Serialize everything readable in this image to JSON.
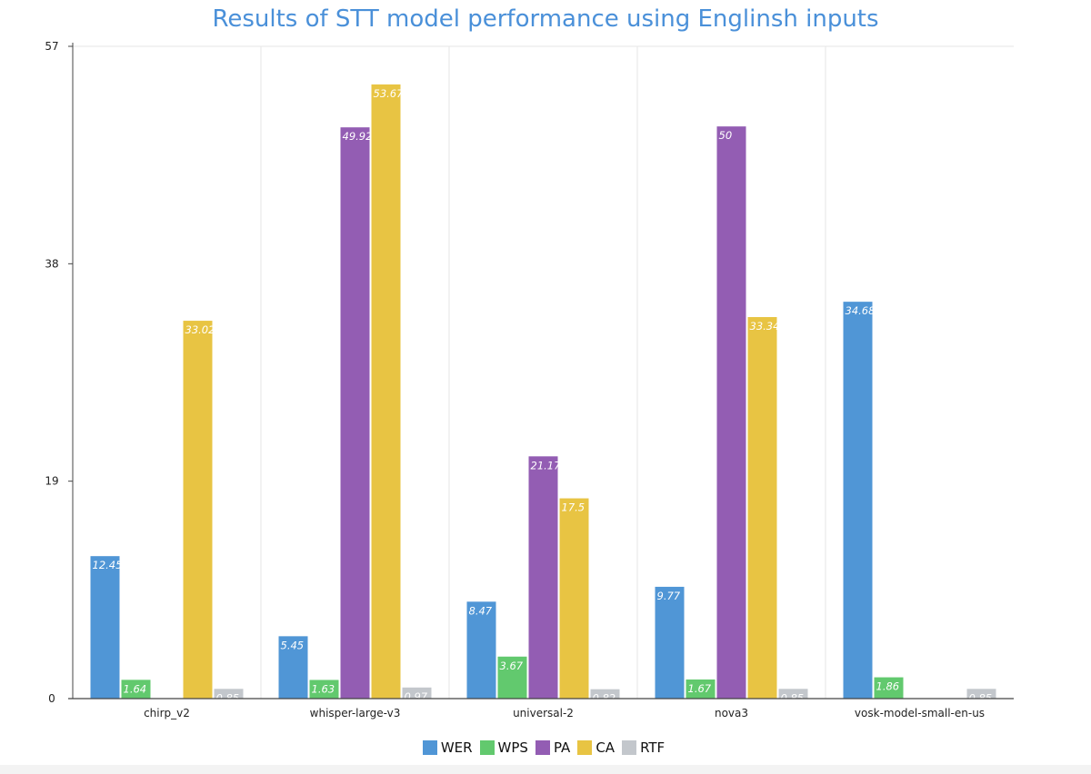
{
  "chart_data": {
    "type": "bar",
    "title": "Results of STT model performance using Englinsh inputs",
    "categories": [
      "chirp_v2",
      "whisper-large-v3",
      "universal-2",
      "nova3",
      "vosk-model-small-en-us"
    ],
    "series": [
      {
        "name": "WER",
        "color": "#5096d6",
        "values": [
          12.45,
          5.45,
          8.47,
          9.77,
          34.68
        ],
        "labels": [
          "12.45",
          "5.45",
          "8.47",
          "9.77",
          "34.68"
        ]
      },
      {
        "name": "WPS",
        "color": "#62c96e",
        "values": [
          1.64,
          1.63,
          3.67,
          1.67,
          1.86
        ],
        "labels": [
          "1.64",
          "1.63",
          "3.67",
          "1.67",
          "1.86"
        ]
      },
      {
        "name": "PA",
        "color": "#935db3",
        "values": [
          0,
          49.92,
          21.17,
          50,
          0
        ],
        "labels": [
          "",
          "49.92",
          "21.17",
          "50",
          ""
        ]
      },
      {
        "name": "CA",
        "color": "#e8c443",
        "values": [
          33.02,
          53.67,
          17.5,
          33.34,
          0
        ],
        "labels": [
          "33.02",
          "53.67",
          "17.5",
          "33.34",
          ""
        ]
      },
      {
        "name": "RTF",
        "color": "#c3c7cc",
        "values": [
          0.85,
          0.97,
          0.82,
          0.85,
          0.85
        ],
        "labels": [
          "0.85",
          "0.97",
          "0.82",
          "0.85",
          "0.85"
        ]
      }
    ],
    "yticks": [
      "0",
      "19",
      "38",
      "57"
    ],
    "ylim": [
      0,
      57
    ],
    "grid": true,
    "legend_position": "bottom"
  }
}
